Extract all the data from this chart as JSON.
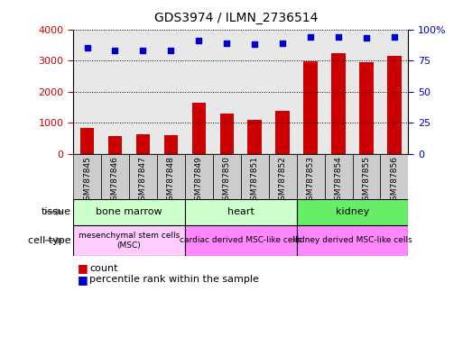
{
  "title": "GDS3974 / ILMN_2736514",
  "samples": [
    "GSM787845",
    "GSM787846",
    "GSM787847",
    "GSM787848",
    "GSM787849",
    "GSM787850",
    "GSM787851",
    "GSM787852",
    "GSM787853",
    "GSM787854",
    "GSM787855",
    "GSM787856"
  ],
  "counts": [
    840,
    570,
    640,
    600,
    1660,
    1290,
    1110,
    1380,
    2970,
    3230,
    2940,
    3150
  ],
  "percentiles": [
    85,
    83,
    83,
    83,
    91,
    89,
    88,
    89,
    94,
    94,
    93,
    94
  ],
  "ylim_left": [
    0,
    4000
  ],
  "ylim_right": [
    0,
    100
  ],
  "yticks_left": [
    0,
    1000,
    2000,
    3000,
    4000
  ],
  "yticks_right": [
    0,
    25,
    50,
    75,
    100
  ],
  "bar_color": "#cc0000",
  "dot_color": "#0000cc",
  "bar_width": 0.5,
  "tissue_row_label": "tissue",
  "cell_type_row_label": "cell type",
  "legend_count_label": "count",
  "legend_percentile_label": "percentile rank within the sample",
  "grid_color": "black",
  "tick_color_left": "#cc0000",
  "tick_color_right": "#0000cc",
  "background_color": "#ffffff",
  "plot_bg_color": "#e8e8e8",
  "sample_box_color": "#cccccc",
  "tissue_groups": [
    {
      "label": "bone marrow",
      "start": 0,
      "end": 4,
      "color": "#ccffcc"
    },
    {
      "label": "heart",
      "start": 4,
      "end": 8,
      "color": "#ccffcc"
    },
    {
      "label": "kidney",
      "start": 8,
      "end": 12,
      "color": "#66ee66"
    }
  ],
  "cell_type_groups": [
    {
      "label": "mesenchymal stem cells\n(MSC)",
      "start": 0,
      "end": 4,
      "color": "#ffccff"
    },
    {
      "label": "cardiac derived MSC-like cells",
      "start": 4,
      "end": 8,
      "color": "#ff88ff"
    },
    {
      "label": "kidney derived MSC-like cells",
      "start": 8,
      "end": 12,
      "color": "#ff88ff"
    }
  ]
}
